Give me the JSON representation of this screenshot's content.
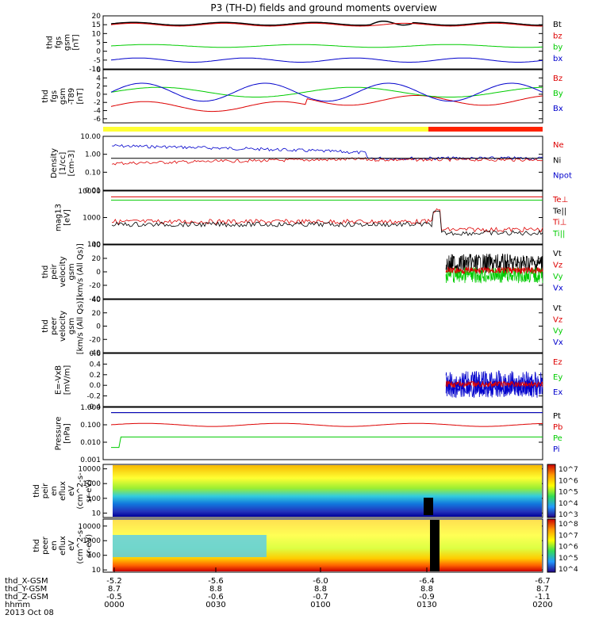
{
  "title": "P3 (TH-D) fields and ground moments overview",
  "date": "2013 Oct 08",
  "chart_data": [
    {
      "type": "line",
      "name": "fgs",
      "ylabel": [
        "thd",
        "fgs",
        "gsm",
        "[nT]"
      ],
      "ylim": [
        -10,
        20
      ],
      "ticks": [
        "20",
        "15",
        "10",
        "5",
        "0",
        "-5",
        "-10"
      ],
      "ticks_v": [
        20,
        15,
        10,
        5,
        0,
        -5,
        -10
      ],
      "series": [
        {
          "name": "Bt",
          "color": "#000000"
        },
        {
          "name": "bz",
          "color": "#dd0000"
        },
        {
          "name": "by",
          "color": "#00cc00"
        },
        {
          "name": "bx",
          "color": "#0000cc"
        }
      ]
    },
    {
      "type": "line",
      "name": "fgs_dtrend",
      "ylabel": [
        "thd",
        "fgs",
        "gsm",
        "-T89",
        "[nT]"
      ],
      "ylim": [
        -7,
        6
      ],
      "ticks": [
        "6",
        "4",
        "2",
        "0",
        "-2",
        "-4",
        "-6"
      ],
      "ticks_v": [
        6,
        4,
        2,
        0,
        -2,
        -4,
        -6
      ],
      "series": [
        {
          "name": "Bz",
          "color": "#dd0000"
        },
        {
          "name": "By",
          "color": "#00cc00"
        },
        {
          "name": "Bx",
          "color": "#0000cc"
        }
      ]
    },
    {
      "type": "line",
      "name": "density",
      "ylabel": [
        "Density",
        "[1/cc]",
        "[cm-3]"
      ],
      "log": true,
      "ylim": [
        0.01,
        10
      ],
      "ticks": [
        "10.00",
        "1.00",
        "0.10",
        "0.01"
      ],
      "ticks_v": [
        10,
        1,
        0.1,
        0.01
      ],
      "series": [
        {
          "name": "Ne",
          "color": "#dd0000"
        },
        {
          "name": "Ni",
          "color": "#000000"
        },
        {
          "name": "Npot",
          "color": "#0000cc"
        }
      ]
    },
    {
      "type": "line",
      "name": "temp",
      "ylabel": [
        "mag13",
        "[eV]"
      ],
      "log": true,
      "ylim": [
        100,
        10000
      ],
      "ticks": [
        "10000",
        "1000",
        "100"
      ],
      "ticks_v": [
        10000,
        1000,
        100
      ],
      "series": [
        {
          "name": "Te⊥",
          "color": "#dd0000"
        },
        {
          "name": "Te||",
          "color": "#000000"
        },
        {
          "name": "Ti⊥",
          "color": "#dd0000"
        },
        {
          "name": "Ti||",
          "color": "#00cc00"
        }
      ]
    },
    {
      "type": "line",
      "name": "peir_velocity",
      "ylabel": [
        "thd",
        "peir",
        "velocity",
        "gsm",
        "[km/s (All Qs)]"
      ],
      "ylim": [
        -40,
        40
      ],
      "ticks": [
        "40",
        "20",
        "0",
        "-20",
        "-40"
      ],
      "ticks_v": [
        40,
        20,
        0,
        -20,
        -40
      ],
      "series": [
        {
          "name": "Vt",
          "color": "#000000"
        },
        {
          "name": "Vz",
          "color": "#dd0000"
        },
        {
          "name": "Vy",
          "color": "#00cc00"
        },
        {
          "name": "Vx",
          "color": "#0000cc"
        }
      ]
    },
    {
      "type": "line",
      "name": "peer_velocity",
      "ylabel": [
        "thd",
        "peer",
        "velocity",
        "gsm",
        "[km/s (All Qs)]"
      ],
      "ylim": [
        -40,
        40
      ],
      "ticks": [
        "40",
        "20",
        "0",
        "-20",
        "-40"
      ],
      "ticks_v": [
        40,
        20,
        0,
        -20,
        -40
      ],
      "series": [
        {
          "name": "Vt",
          "color": "#000000"
        },
        {
          "name": "Vz",
          "color": "#dd0000"
        },
        {
          "name": "Vy",
          "color": "#00cc00"
        },
        {
          "name": "Vx",
          "color": "#0000cc"
        }
      ]
    },
    {
      "type": "line",
      "name": "efield",
      "ylabel": [
        "E=-VxB",
        "[mV/m]"
      ],
      "ylim": [
        -0.4,
        0.6
      ],
      "ticks": [
        "0.6",
        "0.4",
        "0.2",
        "0.0",
        "-0.2",
        "-0.4"
      ],
      "ticks_v": [
        0.6,
        0.4,
        0.2,
        0,
        -0.2,
        -0.4
      ],
      "series": [
        {
          "name": "Ez",
          "color": "#dd0000"
        },
        {
          "name": "Ey",
          "color": "#00cc00"
        },
        {
          "name": "Ex",
          "color": "#0000cc"
        }
      ]
    },
    {
      "type": "line",
      "name": "pressure",
      "ylabel": [
        "Pressure",
        "[nPa]"
      ],
      "log": true,
      "ylim": [
        0.001,
        1
      ],
      "ticks": [
        "1.000",
        "0.100",
        "0.010",
        "0.001"
      ],
      "ticks_v": [
        1,
        0.1,
        0.01,
        0.001
      ],
      "series": [
        {
          "name": "Pt",
          "color": "#000000"
        },
        {
          "name": "Pb",
          "color": "#dd0000"
        },
        {
          "name": "Pe",
          "color": "#00cc00"
        },
        {
          "name": "Pi",
          "color": "#0000cc"
        }
      ]
    },
    {
      "type": "heatmap",
      "name": "peir_spec",
      "ylabel": [
        "thd",
        "peir",
        "en",
        "eflux",
        "eV",
        "(cm^2-s-",
        "sr-eV)"
      ],
      "log": true,
      "ylim": [
        5,
        20000
      ],
      "ticks": [
        "10000",
        "1000",
        "100",
        "10"
      ],
      "ticks_v": [
        10000,
        1000,
        100,
        10
      ],
      "cbar": [
        "10^7",
        "10^6",
        "10^5",
        "10^4",
        "10^3"
      ]
    },
    {
      "type": "heatmap",
      "name": "peer_spec",
      "ylabel": [
        "thd",
        "peer",
        "en",
        "eflux",
        "eV",
        "(cm^2-s-",
        "sr-eV)"
      ],
      "log": true,
      "ylim": [
        7,
        30000
      ],
      "ticks": [
        "10000",
        "1000",
        "100",
        "10"
      ],
      "ticks_v": [
        10000,
        1000,
        100,
        10
      ],
      "cbar": [
        "10^8",
        "10^7",
        "10^6",
        "10^5",
        "10^4"
      ]
    }
  ],
  "xaxis": {
    "rows": [
      {
        "label": "thd_X-GSM",
        "values": [
          "-5.2",
          "-5.6",
          "-6.0",
          "-6.4",
          "-6.7"
        ]
      },
      {
        "label": "thd_Y-GSM",
        "values": [
          "8.7",
          "8.8",
          "8.8",
          "8.8",
          "8.7"
        ]
      },
      {
        "label": "thd_Z-GSM",
        "values": [
          "-0.5",
          "-0.6",
          "-0.7",
          "-0.9",
          "-1.1"
        ]
      },
      {
        "label": "hhmm",
        "values": [
          "0000",
          "0030",
          "0100",
          "0130",
          "0200"
        ]
      }
    ]
  }
}
